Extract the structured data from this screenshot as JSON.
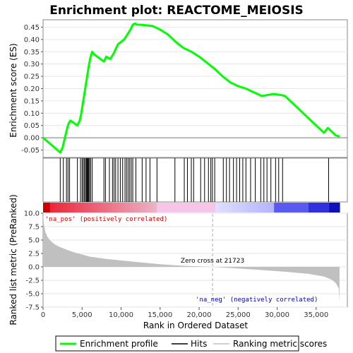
{
  "chart_data": {
    "title": "Enrichment plot: REACTOME_MEIOSIS",
    "es_panel": {
      "type": "line",
      "ylabel": "Enrichment score (ES)",
      "ylim": [
        -0.08,
        0.48
      ],
      "yticks": [
        -0.05,
        0.0,
        0.05,
        0.1,
        0.15,
        0.2,
        0.25,
        0.3,
        0.35,
        0.4,
        0.45
      ],
      "ytick_labels": [
        "-0.05",
        "0.00",
        "0.05",
        "0.10",
        "0.15",
        "0.20",
        "0.25",
        "0.30",
        "0.35",
        "0.40",
        "0.45"
      ],
      "series": [
        {
          "color": "#00ff00",
          "x": [
            0,
            2200,
            2500,
            2800,
            3100,
            3300,
            3500,
            4400,
            4700,
            4900,
            5100,
            5300,
            5500,
            5700,
            5900,
            6100,
            6300,
            6500,
            7800,
            8100,
            8600,
            9000,
            9300,
            9600,
            10000,
            10400,
            10800,
            11200,
            11500,
            11800,
            12000,
            12500,
            13000,
            14000,
            15000,
            16000,
            17000,
            18000,
            19000,
            20000,
            21000,
            22000,
            23000,
            24000,
            25000,
            26000,
            27000,
            27500,
            28000,
            29000,
            29500,
            30000,
            30500,
            31000,
            32000,
            33000,
            34000,
            35000,
            36000,
            36500,
            37000,
            37500,
            38000
          ],
          "y": [
            0.0,
            -0.06,
            -0.04,
            0.0,
            0.04,
            0.06,
            0.07,
            0.05,
            0.07,
            0.1,
            0.14,
            0.18,
            0.22,
            0.26,
            0.3,
            0.33,
            0.35,
            0.34,
            0.31,
            0.33,
            0.32,
            0.34,
            0.36,
            0.38,
            0.39,
            0.4,
            0.42,
            0.44,
            0.46,
            0.465,
            0.46,
            0.46,
            0.458,
            0.455,
            0.44,
            0.42,
            0.39,
            0.365,
            0.35,
            0.33,
            0.305,
            0.28,
            0.25,
            0.225,
            0.21,
            0.2,
            0.185,
            0.178,
            0.17,
            0.175,
            0.178,
            0.176,
            0.174,
            0.17,
            0.14,
            0.11,
            0.08,
            0.05,
            0.02,
            0.04,
            0.025,
            0.01,
            0.005
          ]
        }
      ]
    },
    "hits_panel": {
      "hits": [
        2200,
        2600,
        3000,
        3200,
        3400,
        4400,
        4800,
        5000,
        5150,
        5300,
        5450,
        5550,
        5650,
        5750,
        5850,
        5950,
        6100,
        6300,
        7800,
        8000,
        8500,
        8900,
        9100,
        9300,
        9600,
        9900,
        10200,
        10500,
        10700,
        10900,
        11100,
        11300,
        11500,
        11900,
        12700,
        13200,
        13700,
        14600,
        16900,
        18100,
        18500,
        19000,
        19300,
        20200,
        20700,
        21200,
        21500,
        21700,
        22000,
        23100,
        23500,
        23900,
        24400,
        24800,
        25200,
        25600,
        26000,
        26600,
        27200,
        27900,
        28300,
        28700,
        29200,
        29800,
        30200,
        30700,
        36600
      ]
    },
    "metric_panel": {
      "type": "area",
      "ylabel": "Ranked list metric (PreRanked)",
      "ylim": [
        -7.5,
        10.0
      ],
      "yticks": [
        -7.5,
        -5.0,
        -2.5,
        0.0,
        2.5,
        5.0,
        7.5,
        10.0
      ],
      "ytick_labels": [
        "-7.5",
        "-5.0",
        "-2.5",
        "0.0",
        "2.5",
        "5.0",
        "7.5",
        "10.0"
      ],
      "x": [
        0,
        100,
        300,
        600,
        1000,
        1500,
        2000,
        3000,
        4000,
        5000,
        6000,
        8000,
        10000,
        12000,
        15000,
        18000,
        21723,
        25000,
        28000,
        31000,
        34000,
        36000,
        37000,
        37500,
        37900,
        38000
      ],
      "values": [
        10.0,
        8.0,
        6.5,
        5.5,
        4.8,
        4.2,
        3.8,
        3.2,
        2.7,
        2.3,
        1.9,
        1.5,
        1.2,
        0.9,
        0.5,
        0.2,
        0.0,
        -0.3,
        -0.6,
        -0.9,
        -1.3,
        -1.8,
        -2.4,
        -3.0,
        -4.0,
        -6.5
      ],
      "fill_color": "#c0c0c0",
      "zero_cross_label": "Zero cross at 21723",
      "zero_cross_x": 21723,
      "pos_label": "'na_pos' (positively correlated)",
      "neg_label": "'na_neg' (negatively correlated)"
    },
    "xaxis": {
      "label": "Rank in Ordered Dataset",
      "xlim": [
        0,
        39000
      ],
      "ticks": [
        0,
        5000,
        10000,
        15000,
        20000,
        25000,
        30000,
        35000
      ],
      "tick_labels": [
        "0",
        "5,000",
        "10,000",
        "15,000",
        "20,000",
        "25,000",
        "30,000",
        "35,000"
      ]
    },
    "legend": [
      {
        "label": "Enrichment profile",
        "color": "#00ff00"
      },
      {
        "label": "Hits",
        "color": "#000000"
      },
      {
        "label": "Ranking metric scores",
        "color": "#c0c0c0"
      }
    ]
  }
}
